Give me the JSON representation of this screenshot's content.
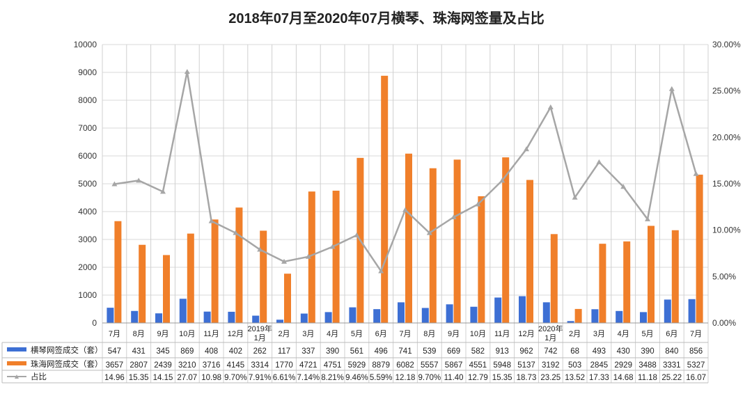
{
  "chart_data": {
    "type": "bar",
    "title": "2018年07月至2020年07月横琴、珠海网签量及占比",
    "categories": [
      "7月",
      "8月",
      "9月",
      "10月",
      "11月",
      "12月",
      "2019年1月",
      "2月",
      "3月",
      "4月",
      "5月",
      "6月",
      "7月",
      "8月",
      "9月",
      "10月",
      "11月",
      "12月",
      "2020年1月",
      "2月",
      "3月",
      "4月",
      "5月",
      "6月",
      "7月"
    ],
    "series": [
      {
        "name": "横琴网签成交（套）",
        "type": "bar",
        "axis": "left",
        "color": "#3d6fd4",
        "values": [
          547,
          431,
          345,
          869,
          408,
          402,
          262,
          117,
          337,
          390,
          561,
          496,
          741,
          539,
          669,
          582,
          913,
          962,
          742,
          68,
          493,
          430,
          390,
          840,
          856
        ]
      },
      {
        "name": "珠海网签成交（套）",
        "type": "bar",
        "axis": "left",
        "color": "#f07f2a",
        "values": [
          3657,
          2807,
          2439,
          3210,
          3716,
          4145,
          3314,
          1770,
          4721,
          4751,
          5929,
          8879,
          6082,
          5557,
          5867,
          4551,
          5948,
          5137,
          3192,
          503,
          2845,
          2929,
          3488,
          3331,
          5327
        ]
      },
      {
        "name": "占比",
        "type": "line",
        "axis": "right",
        "color": "#a6a6a6",
        "unit": "%",
        "values": [
          14.96,
          15.35,
          14.15,
          27.07,
          10.98,
          9.7,
          7.91,
          6.61,
          7.14,
          8.21,
          9.46,
          5.59,
          12.18,
          9.7,
          11.4,
          12.79,
          15.35,
          18.73,
          23.25,
          13.52,
          17.33,
          14.68,
          11.18,
          25.22,
          16.07
        ],
        "labels": [
          "14.96",
          "15.35",
          "14.15",
          "27.07",
          "10.98",
          "9.70%",
          "7.91%",
          "6.61%",
          "7.14%",
          "8.21%",
          "9.46%",
          "5.59%",
          "12.18",
          "9.70%",
          "11.40",
          "12.79",
          "15.35",
          "18.73",
          "23.25",
          "13.52",
          "17.33",
          "14.68",
          "11.18",
          "25.22",
          "16.07"
        ]
      }
    ],
    "left_axis": {
      "range": [
        0,
        10000
      ],
      "ticks": [
        "0",
        "1000",
        "2000",
        "3000",
        "4000",
        "5000",
        "6000",
        "7000",
        "8000",
        "9000",
        "10000"
      ]
    },
    "right_axis": {
      "range": [
        0,
        30
      ],
      "ticks": [
        "0.00%",
        "5.00%",
        "10.00%",
        "15.00%",
        "20.00%",
        "25.00%",
        "30.00%"
      ]
    },
    "grid": true,
    "legend": "data-table-bottom"
  }
}
